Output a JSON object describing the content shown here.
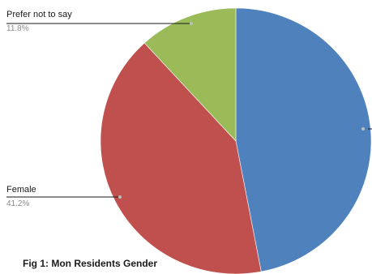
{
  "chart_data": {
    "type": "pie",
    "title": "",
    "caption": "Fig 1: Mon Residents Gender",
    "slices": [
      {
        "label": "",
        "value": 47.0,
        "percent_label": "",
        "color": "#4f81bd"
      },
      {
        "label": "Female",
        "value": 41.2,
        "percent_label": "41.2%",
        "color": "#c0504d"
      },
      {
        "label": "Prefer not to say",
        "value": 11.8,
        "percent_label": "11.8%",
        "color": "#9bbb59"
      }
    ],
    "start_angle_deg": 0,
    "direction": "clockwise",
    "legend": "none"
  }
}
